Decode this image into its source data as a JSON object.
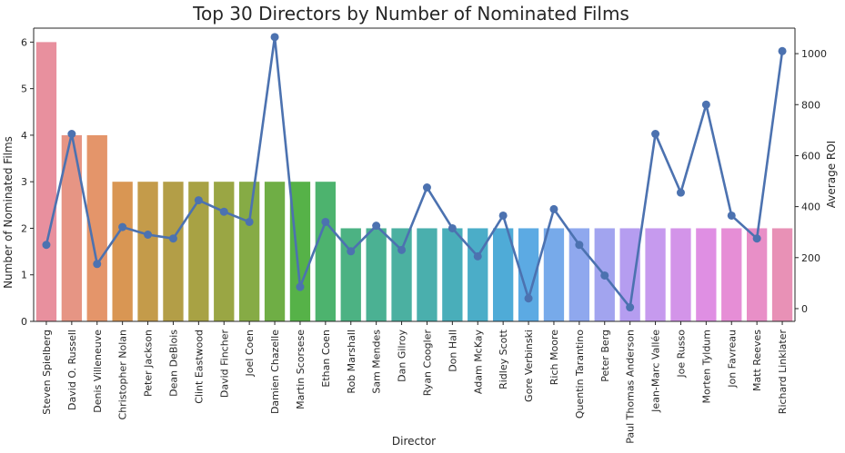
{
  "chart_data": {
    "type": "bar",
    "title": "Top 30 Directors by Number of Nominated Films",
    "xlabel": "Director",
    "ylabel": "Number of Nominated Films",
    "y2label": "Average ROI",
    "ylim": [
      0,
      6.3
    ],
    "y2lim": [
      -50,
      1100
    ],
    "yticks": [
      0,
      1,
      2,
      3,
      4,
      5,
      6
    ],
    "y2ticks": [
      0,
      200,
      400,
      600,
      800,
      1000
    ],
    "grid": false,
    "line_color": "#4c72b0",
    "categories": [
      "Steven Spielberg",
      "David O. Russell",
      "Denis Villeneuve",
      "Christopher Nolan",
      "Peter Jackson",
      "Dean DeBlois",
      "Clint Eastwood",
      "David Fincher",
      "Joel Coen",
      "Damien Chazelle",
      "Martin Scorsese",
      "Ethan Coen",
      "Rob Marshall",
      "Sam Mendes",
      "Dan Gilroy",
      "Ryan Coogler",
      "Don Hall",
      "Adam McKay",
      "Ridley Scott",
      "Gore Verbinski",
      "Rich Moore",
      "Quentin Tarantino",
      "Peter Berg",
      "Paul Thomas Anderson",
      "Jean-Marc Vallée",
      "Joe Russo",
      "Morten Tyldum",
      "Jon Favreau",
      "Matt Reeves",
      "Richard Linklater"
    ],
    "series": [
      {
        "type": "bar",
        "axis": "left",
        "values": [
          6,
          4,
          4,
          3,
          3,
          3,
          3,
          3,
          3,
          3,
          3,
          3,
          2,
          2,
          2,
          2,
          2,
          2,
          2,
          2,
          2,
          2,
          2,
          2,
          2,
          2,
          2,
          2,
          2,
          2
        ]
      },
      {
        "type": "line",
        "axis": "right",
        "values": [
          250,
          685,
          175,
          320,
          290,
          275,
          425,
          380,
          340,
          1065,
          85,
          340,
          225,
          325,
          230,
          475,
          315,
          205,
          365,
          40,
          390,
          250,
          130,
          5,
          685,
          455,
          800,
          365,
          275,
          1010
        ]
      }
    ],
    "bar_colors": [
      "#e8909e",
      "#e69584",
      "#e4956a",
      "#d99653",
      "#c49b4a",
      "#b39e47",
      "#a8a244",
      "#9aa644",
      "#86ab45",
      "#6fae45",
      "#56b248",
      "#4db36e",
      "#4cb283",
      "#4bb193",
      "#4bb0a1",
      "#4aafad",
      "#49aeba",
      "#4badc8",
      "#4fabd7",
      "#5caae3",
      "#77aaea",
      "#8fa8ee",
      "#a2a4ef",
      "#b59df0",
      "#c69aee",
      "#d394e9",
      "#df8fe3",
      "#e68ed6",
      "#e88fc7",
      "#e891b6"
    ]
  }
}
